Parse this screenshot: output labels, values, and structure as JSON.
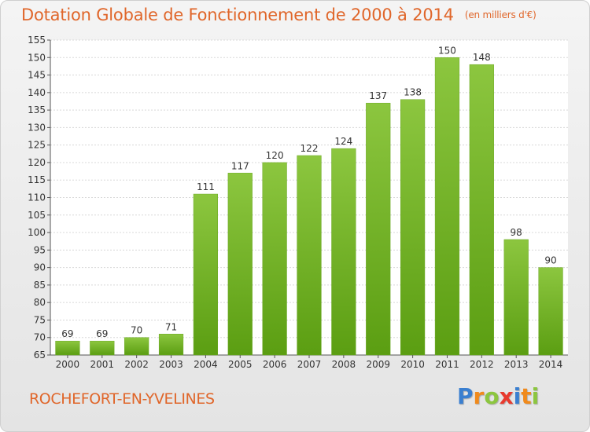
{
  "chart_data": {
    "type": "bar",
    "title": "Dotation Globale de Fonctionnement de 2000 à 2014",
    "unit_label": "(en milliers d'€)",
    "categories": [
      "2000",
      "2001",
      "2002",
      "2003",
      "2004",
      "2005",
      "2006",
      "2007",
      "2008",
      "2009",
      "2010",
      "2011",
      "2012",
      "2013",
      "2014"
    ],
    "values": [
      69,
      69,
      70,
      71,
      111,
      117,
      120,
      122,
      124,
      137,
      138,
      150,
      148,
      98,
      90
    ],
    "ylim": [
      65,
      155
    ],
    "yticks": [
      65,
      70,
      75,
      80,
      85,
      90,
      95,
      100,
      105,
      110,
      115,
      120,
      125,
      130,
      135,
      140,
      145,
      150,
      155
    ],
    "grid": true,
    "legend": "none",
    "bar_color": "#8cc63f",
    "bar_color_dark": "#5b9e12"
  },
  "footer": {
    "commune": "ROCHEFORT-EN-YVELINES",
    "logo_letters": [
      {
        "ch": "P",
        "color": "#3a7fd0"
      },
      {
        "ch": "r",
        "color": "#f08a1c"
      },
      {
        "ch": "o",
        "color": "#8cc63f"
      },
      {
        "ch": "x",
        "color": "#e83a2e"
      },
      {
        "ch": "i",
        "color": "#3a7fd0"
      },
      {
        "ch": "t",
        "color": "#f08a1c"
      },
      {
        "ch": "i",
        "color": "#8cc63f"
      }
    ]
  }
}
